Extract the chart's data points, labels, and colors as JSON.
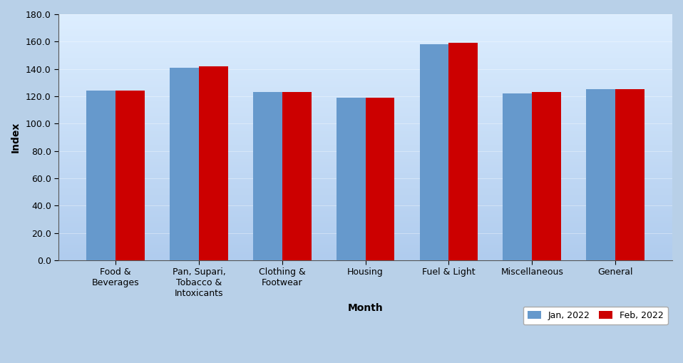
{
  "categories": [
    "Food &\nBeverages",
    "Pan, Supari,\nTobacco &\nIntoxicants",
    "Clothing &\nFootwear",
    "Housing",
    "Fuel & Light",
    "Miscellaneous",
    "General"
  ],
  "jan_values": [
    124.0,
    141.0,
    123.0,
    119.0,
    158.0,
    122.0,
    125.0
  ],
  "feb_values": [
    124.0,
    142.0,
    123.0,
    119.0,
    159.0,
    123.0,
    125.0
  ],
  "bar_color_jan": "#6699CC",
  "bar_color_feb": "#CC0000",
  "ylabel": "Index",
  "xlabel": "Month",
  "ylim": [
    0,
    180
  ],
  "yticks": [
    0.0,
    20.0,
    40.0,
    60.0,
    80.0,
    100.0,
    120.0,
    140.0,
    160.0,
    180.0
  ],
  "legend_jan": "Jan, 2022",
  "legend_feb": "Feb, 2022",
  "bg_color_top": "#B8D0E8",
  "bg_color_bottom": "#D8E8F8",
  "bar_width": 0.35,
  "title_fontsize": 11,
  "axis_fontsize": 10,
  "tick_fontsize": 9
}
